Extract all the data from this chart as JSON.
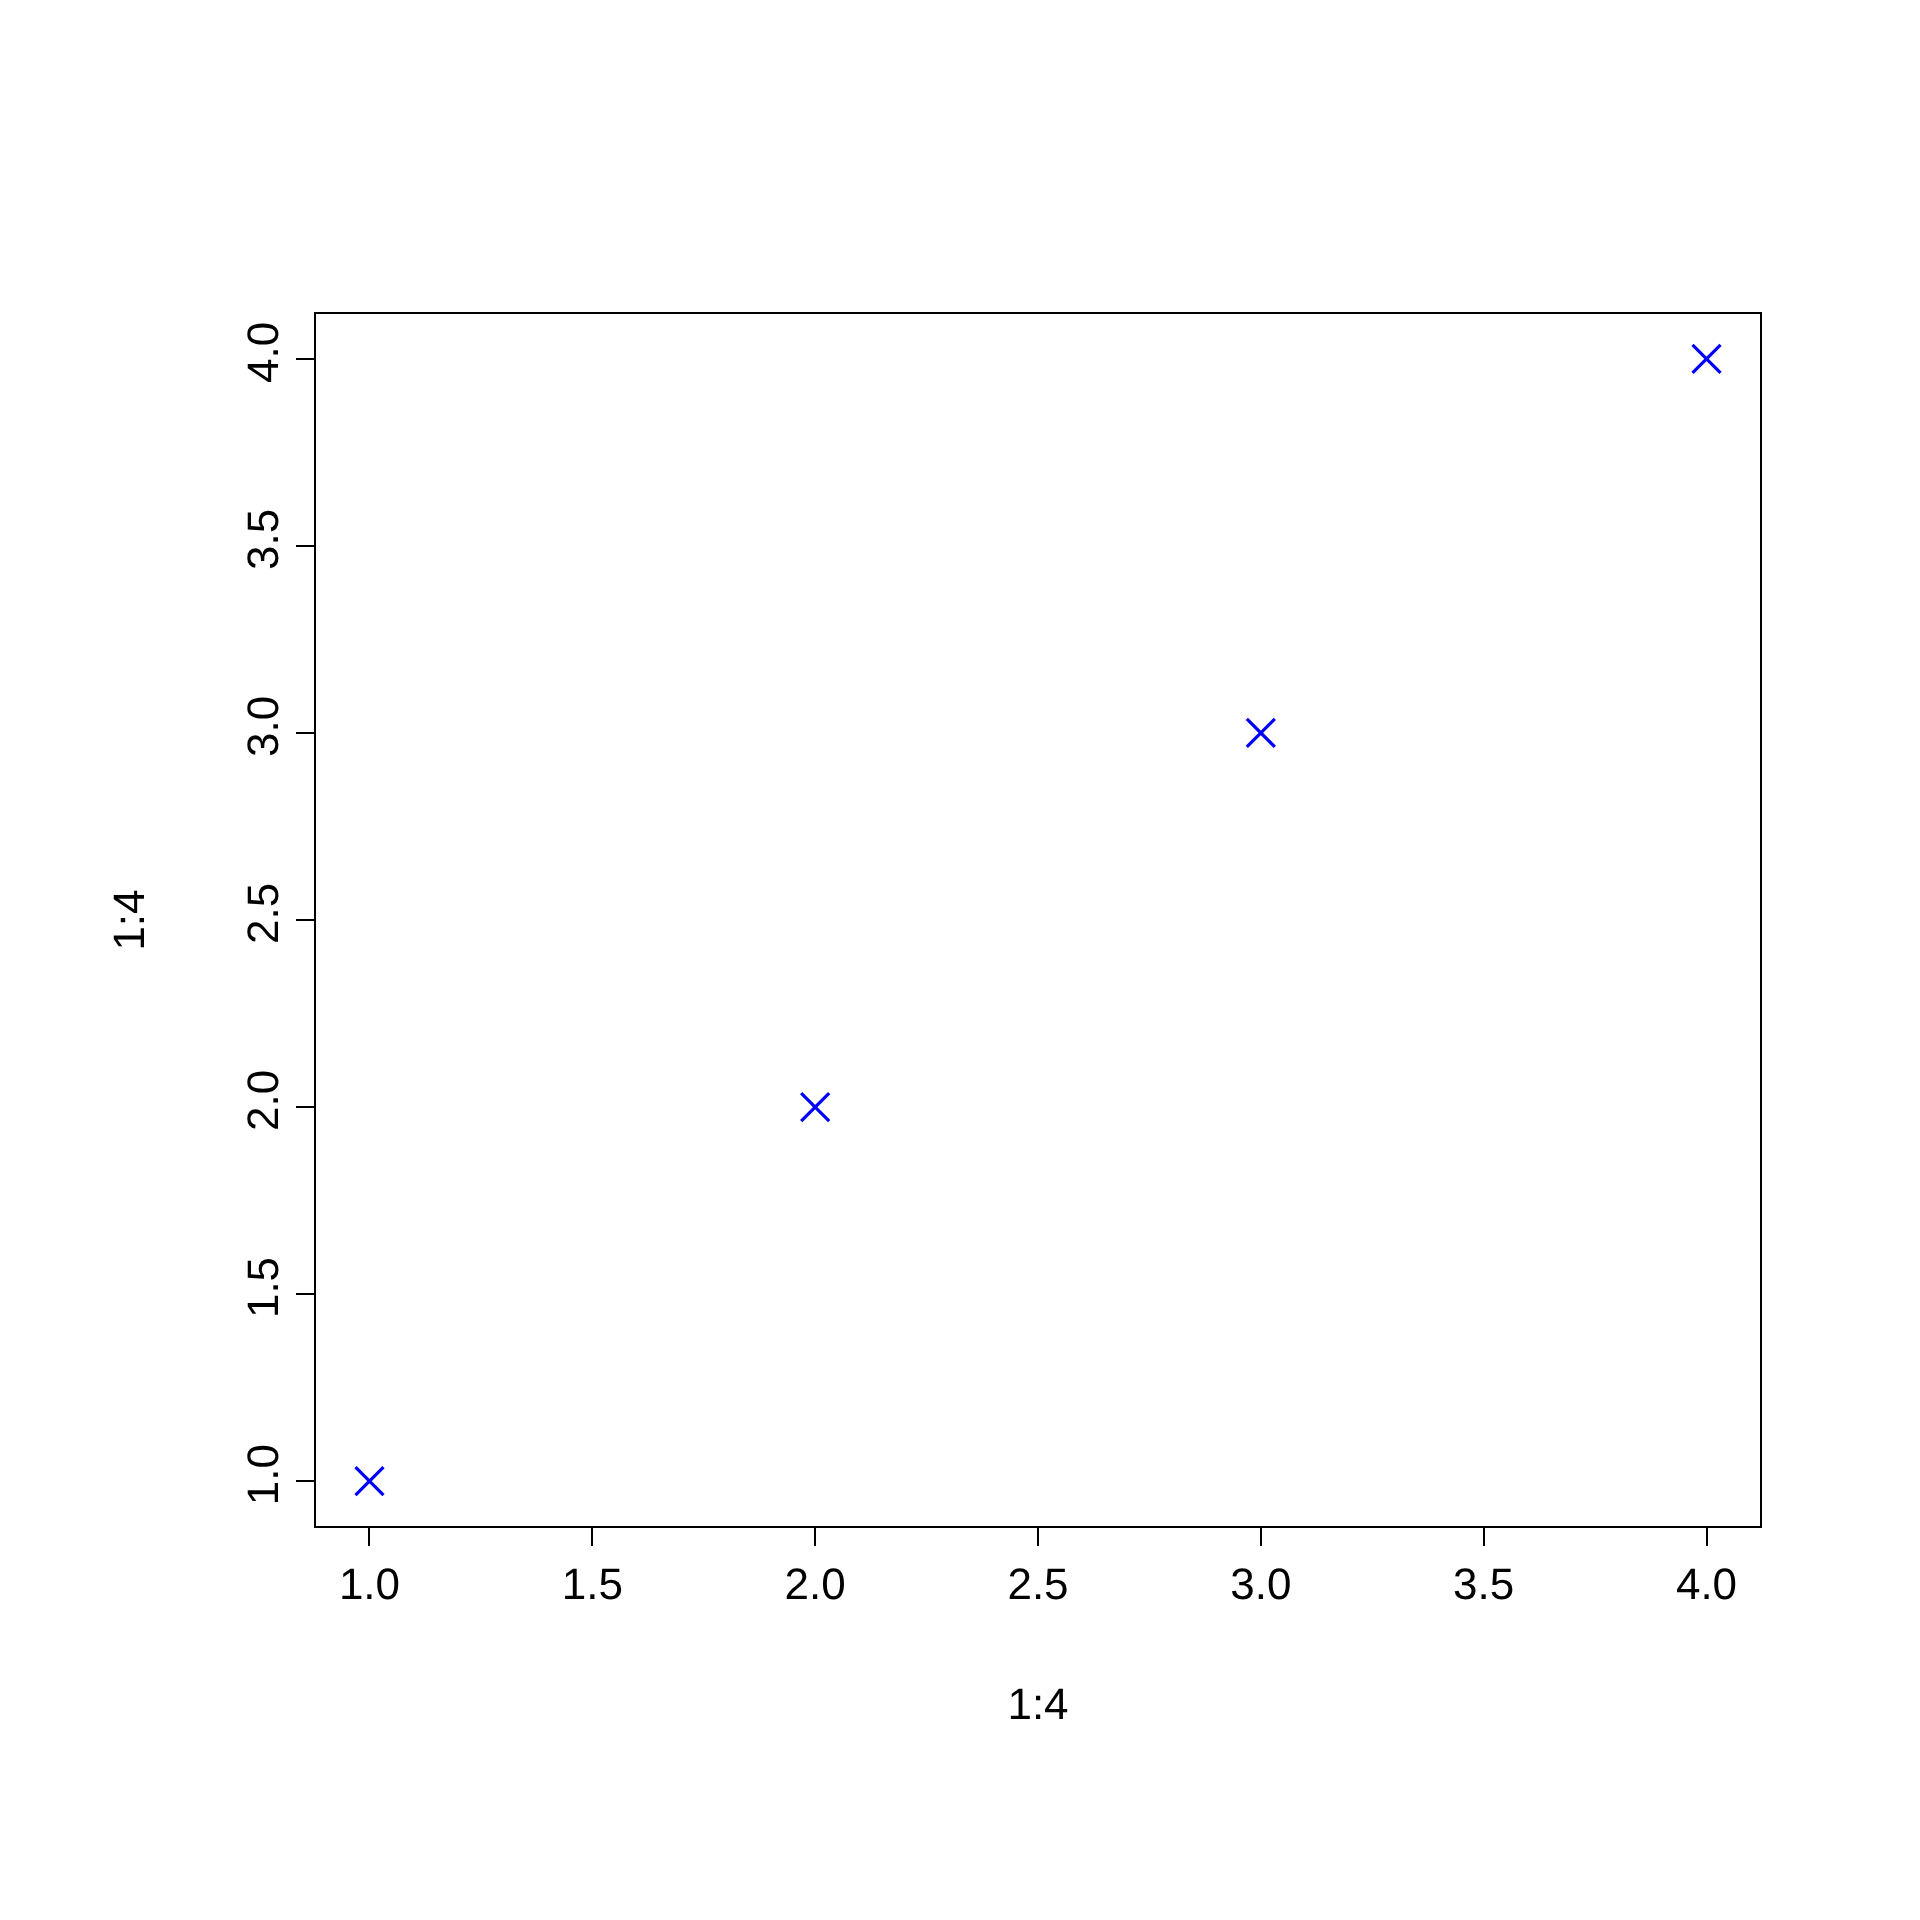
{
  "chart_data": {
    "type": "scatter",
    "xlabel": "1:4",
    "ylabel": "1:4",
    "x": [
      1,
      2,
      3,
      4
    ],
    "series": [
      {
        "color": "#0000ff",
        "values": [
          1,
          2,
          3,
          4
        ]
      }
    ],
    "marker": "cross",
    "xlim": [
      0.88,
      4.12
    ],
    "ylim": [
      0.88,
      4.12
    ],
    "xticks": [
      {
        "value": 1,
        "label": "1.0"
      },
      {
        "value": 1.5,
        "label": "1.5"
      },
      {
        "value": 2,
        "label": "2.0"
      },
      {
        "value": 2.5,
        "label": "2.5"
      },
      {
        "value": 3,
        "label": "3.0"
      },
      {
        "value": 3.5,
        "label": "3.5"
      },
      {
        "value": 4,
        "label": "4.0"
      }
    ],
    "yticks": [
      {
        "value": 1,
        "label": "1.0"
      },
      {
        "value": 1.5,
        "label": "1.5"
      },
      {
        "value": 2,
        "label": "2.0"
      },
      {
        "value": 2.5,
        "label": "2.5"
      },
      {
        "value": 3,
        "label": "3.0"
      },
      {
        "value": 3.5,
        "label": "3.5"
      },
      {
        "value": 4,
        "label": "4.0"
      }
    ]
  }
}
